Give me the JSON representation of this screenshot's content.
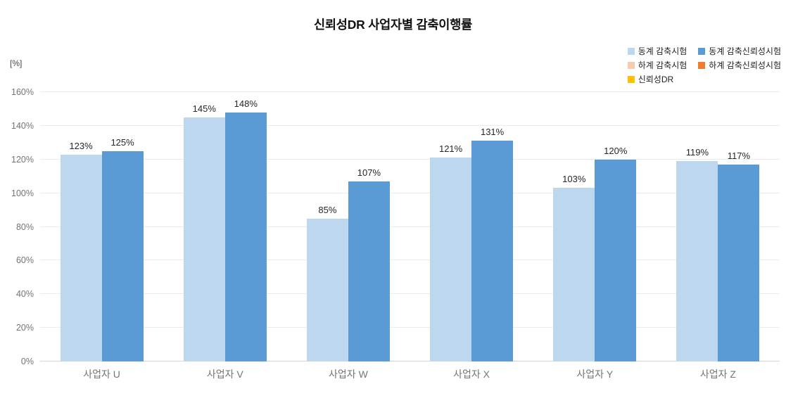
{
  "title": "신뢰성DR 사업자별 감축이행률",
  "axis": {
    "unit_label": "[%]",
    "y_ticks": [
      "160%",
      "140%",
      "120%",
      "100%",
      "80%",
      "60%",
      "40%",
      "20%",
      "0%"
    ]
  },
  "legend": {
    "items": [
      {
        "label": "동계 감축시험",
        "color": "#BDD7EE"
      },
      {
        "label": "동계 감축신뢰성시험",
        "color": "#5B9BD5"
      },
      {
        "label": "하계 감축시험",
        "color": "#F8CBAD"
      },
      {
        "label": "하계 감축신뢰성시험",
        "color": "#ED7D31"
      },
      {
        "label": "신뢰성DR",
        "color": "#FFC000"
      }
    ]
  },
  "chart_data": {
    "type": "bar",
    "title": "신뢰성DR 사업자별 감축이행률",
    "ylabel": "[%]",
    "categories": [
      "사업자 U",
      "사업자 V",
      "사업자 W",
      "사업자 X",
      "사업자 Y",
      "사업자 Z"
    ],
    "series": [
      {
        "name": "동계 감축시험",
        "color": "#BDD7EE",
        "values": [
          123,
          145,
          85,
          121,
          103,
          119
        ]
      },
      {
        "name": "동계 감축신뢰성시험",
        "color": "#5B9BD5",
        "values": [
          125,
          148,
          107,
          131,
          120,
          117
        ]
      }
    ],
    "data_label_format": "{value}%",
    "ylim": [
      0,
      160
    ],
    "y_tick_step": 20,
    "grid": true,
    "legend_position": "top-right",
    "legend_entries_without_data": [
      "하계 감축시험",
      "하계 감축신뢰성시험",
      "신뢰성DR"
    ]
  }
}
